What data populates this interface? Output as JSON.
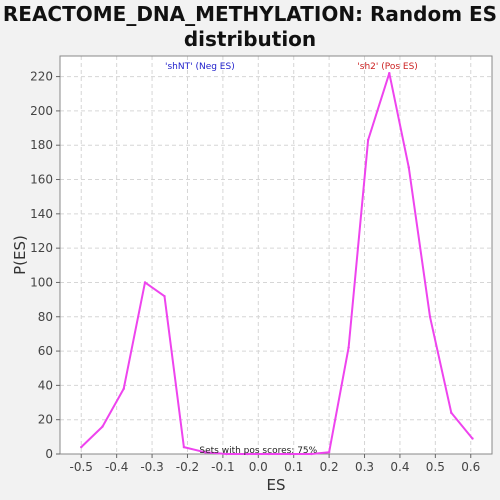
{
  "chart_data": {
    "type": "line",
    "title_line1": "REACTOME_DNA_METHYLATION: Random ES",
    "title_line2": "distribution",
    "xlabel": "ES",
    "ylabel": "P(ES)",
    "xlim": [
      -0.56,
      0.66
    ],
    "ylim": [
      0,
      232
    ],
    "x_ticks": [
      -0.5,
      -0.4,
      -0.3,
      -0.2,
      -0.1,
      0.0,
      0.1,
      0.2,
      0.3,
      0.4,
      0.5,
      0.6
    ],
    "x_tick_labels": [
      "-0.5",
      "-0.4",
      "-0.3",
      "-0.2",
      "-0.1",
      "0.0",
      "0.1",
      "0.2",
      "0.3",
      "0.4",
      "0.5",
      "0.6"
    ],
    "y_ticks": [
      0,
      20,
      40,
      60,
      80,
      100,
      120,
      140,
      160,
      180,
      200,
      220
    ],
    "grid": true,
    "series": [
      {
        "color": "#ee44ee",
        "x": [
          -0.5,
          -0.44,
          -0.38,
          -0.32,
          -0.265,
          -0.21,
          -0.15,
          -0.09,
          -0.03,
          0.03,
          0.09,
          0.15,
          0.2,
          0.255,
          0.31,
          0.37,
          0.425,
          0.485,
          0.545,
          0.605
        ],
        "y": [
          4,
          16,
          38,
          100,
          92,
          4,
          1,
          0,
          0,
          0,
          0,
          0,
          1,
          62,
          183,
          222,
          167,
          80,
          24,
          9
        ]
      }
    ],
    "annotations": {
      "neg": {
        "text": "'shNT' (Neg ES)",
        "x": -0.165,
        "color": "#2222cc"
      },
      "pos": {
        "text": "'sh2' (Pos ES)",
        "x": 0.365,
        "color": "#cc2222"
      },
      "bottom": {
        "text": "Sets with pos scores: 75%",
        "x": 0.0
      }
    }
  }
}
